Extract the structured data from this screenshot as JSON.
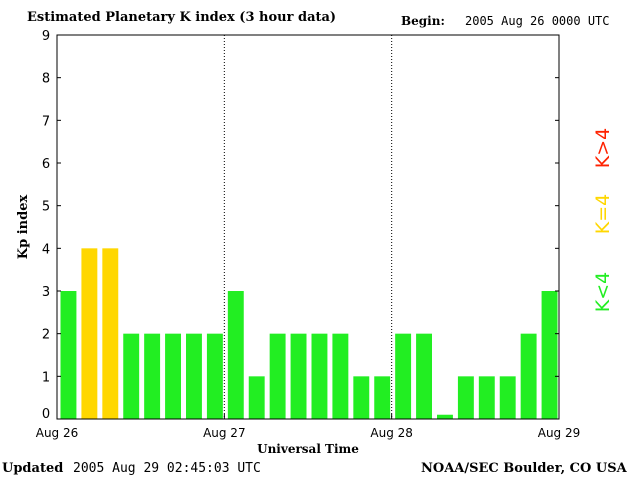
{
  "header": {
    "title": "Estimated Planetary K index (3 hour data)",
    "begin_label": "Begin:",
    "begin_value": "2005 Aug 26 0000 UTC"
  },
  "footer": {
    "updated_label": "Updated",
    "updated_value": "2005 Aug 29 02:45:03 UTC",
    "org": "NOAA/SEC Boulder, CO USA"
  },
  "colors": {
    "below4": "#22ee22",
    "equal4": "#ffd700",
    "above4": "#ff2200"
  },
  "chart_data": {
    "type": "bar",
    "title": "Estimated Planetary K index (3 hour data)",
    "xlabel": "Universal Time",
    "ylabel": "Kp index",
    "ylim": [
      0,
      9
    ],
    "yticks": [
      "0",
      "1",
      "2",
      "3",
      "4",
      "5",
      "6",
      "7",
      "8",
      "9"
    ],
    "xticks": [
      "Aug 26",
      "Aug 27",
      "Aug 28",
      "Aug 29"
    ],
    "values": [
      3,
      4,
      4,
      2,
      2,
      2,
      2,
      2,
      3,
      1,
      2,
      2,
      2,
      2,
      1,
      1,
      2,
      2,
      0.1,
      1,
      1,
      1,
      2,
      3
    ],
    "legend": [
      "K<4",
      "K=4",
      "K>4"
    ],
    "legend_placement": "right"
  }
}
